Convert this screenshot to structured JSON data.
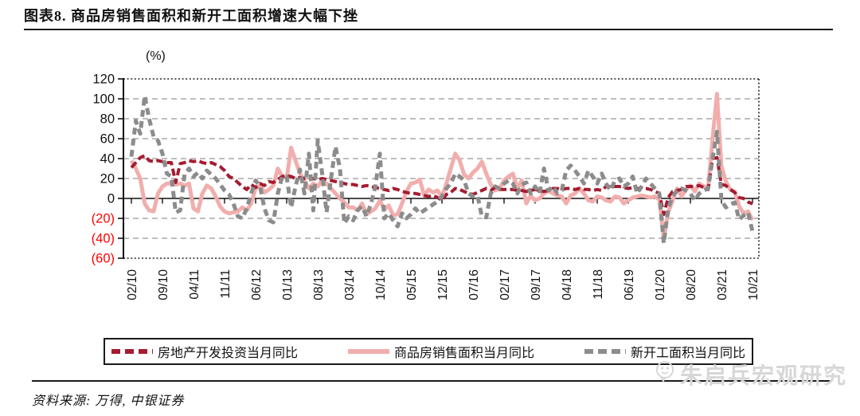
{
  "header": {
    "title": "图表8. 商品房销售面积和新开工面积增速大幅下挫"
  },
  "footer": {
    "source": "资料来源: 万得, 中银证券",
    "watermark": "朱启兵宏观研究"
  },
  "chart_data": {
    "type": "line",
    "unit_label": "(%)",
    "x_start": "02/10",
    "x_end": "10/21",
    "x_tick_every": 7,
    "x_tick_labels": [
      "02/10",
      "09/10",
      "04/11",
      "11/11",
      "06/12",
      "01/13",
      "08/13",
      "03/14",
      "10/14",
      "05/15",
      "12/15",
      "07/16",
      "02/17",
      "09/17",
      "04/18",
      "11/18",
      "06/19",
      "01/20",
      "08/20",
      "03/21",
      "10/21"
    ],
    "ylim": [
      -60,
      120
    ],
    "ytick_values": [
      120,
      100,
      80,
      60,
      40,
      20,
      0,
      -20,
      -40,
      -60
    ],
    "ytick_labels": [
      "120",
      "100",
      "80",
      "60",
      "40",
      "20",
      "0",
      "(20)",
      "(40)",
      "(60)"
    ],
    "negative_tick_color": "#FF0000",
    "grid": "dashed-horizontal",
    "legend_position": "bottom",
    "series": [
      {
        "id": "investment",
        "name": "房地产开发投资当月同比",
        "color": "#A51C30",
        "style": "dashed",
        "values": [
          31,
          36,
          41,
          43,
          38,
          37,
          38,
          37,
          36,
          36,
          16,
          35,
          36,
          38,
          37,
          38,
          36,
          35,
          36,
          34,
          32,
          28,
          22,
          20,
          16,
          12,
          9,
          14,
          11,
          15,
          13,
          17,
          16,
          19,
          22,
          23,
          22,
          20,
          21,
          20,
          20,
          20,
          19,
          20,
          19,
          18,
          17,
          16,
          15,
          14,
          14,
          13,
          12,
          13,
          12,
          11,
          10,
          9,
          8,
          10,
          9,
          7,
          6,
          5,
          5,
          4,
          3,
          2,
          3,
          1,
          -2,
          4,
          6,
          10,
          9,
          7,
          5,
          4,
          6,
          8,
          10,
          8,
          11,
          9,
          9,
          9,
          9,
          8,
          8,
          7,
          8,
          9,
          8,
          7,
          8,
          10,
          10,
          9,
          10,
          10,
          9,
          10,
          9,
          9,
          8,
          9,
          8,
          12,
          12,
          12,
          12,
          11,
          10,
          11,
          10,
          10,
          10,
          9,
          7,
          5,
          -16,
          1,
          7,
          8,
          9,
          12,
          12,
          12,
          13,
          11,
          9,
          40,
          41,
          14,
          13,
          9,
          6,
          1,
          0,
          -3.5,
          -5.4
        ]
      },
      {
        "id": "sales",
        "name": "商品房销售面积当月同比",
        "color": "#F1AEAD",
        "style": "solid",
        "values": [
          38,
          30,
          20,
          -5,
          -12,
          -13,
          5,
          12,
          15,
          15,
          14,
          15,
          13,
          15,
          -10,
          -13,
          5,
          13,
          10,
          2,
          -8,
          -13,
          -15,
          -14,
          -13,
          -9,
          -12,
          -5,
          10,
          13,
          6,
          9,
          13,
          30,
          22,
          20,
          51,
          38,
          25,
          18,
          10,
          15,
          12,
          18,
          15,
          10,
          5,
          0,
          -4,
          -9,
          -9,
          -12,
          -5,
          -16,
          -13,
          -10,
          -2,
          -11,
          -7,
          -17,
          -16,
          -5,
          7,
          15,
          16,
          19,
          3,
          9,
          6,
          8,
          2,
          15,
          30,
          45,
          38,
          24,
          20,
          26,
          30,
          37,
          25,
          14,
          8,
          10,
          18,
          22,
          25,
          10,
          18,
          -5,
          3,
          -2,
          0,
          5,
          8,
          5,
          3,
          2,
          -5,
          3,
          5,
          10,
          5,
          -2,
          -3,
          2,
          1,
          -2,
          -3,
          2,
          1,
          -5,
          -2,
          1,
          2,
          3,
          2,
          1,
          2,
          -1,
          -40,
          -14,
          -2,
          10,
          2,
          9,
          13,
          7,
          15,
          12,
          11,
          60,
          105,
          32,
          17,
          9,
          7,
          -8,
          -15,
          -13,
          -21.7
        ]
      },
      {
        "id": "new-starts",
        "name": "新开工面积当月同比",
        "color": "#8C8C8C",
        "style": "dashed",
        "values": [
          42,
          78,
          65,
          103,
          80,
          62,
          58,
          45,
          25,
          22,
          -14,
          -12,
          25,
          30,
          22,
          26,
          20,
          28,
          24,
          20,
          14,
          8,
          4,
          -5,
          -18,
          -20,
          -10,
          5,
          18,
          12,
          -10,
          -22,
          -24,
          5,
          22,
          22,
          -9,
          12,
          29,
          5,
          45,
          -12,
          58,
          25,
          -14,
          20,
          52,
          30,
          -25,
          -18,
          -22,
          -12,
          -8,
          -18,
          -5,
          12,
          45,
          -20,
          -15,
          -22,
          -28,
          -15,
          -20,
          -16,
          -10,
          -15,
          -12,
          -9,
          -6,
          -3,
          2,
          10,
          15,
          25,
          22,
          18,
          5,
          2,
          3,
          -18,
          -19,
          5,
          12,
          10,
          15,
          18,
          15,
          5,
          14,
          16,
          5,
          12,
          5,
          30,
          8,
          12,
          5,
          8,
          28,
          33,
          28,
          22,
          15,
          28,
          22,
          15,
          25,
          15,
          8,
          18,
          20,
          12,
          15,
          22,
          5,
          12,
          20,
          15,
          10,
          5,
          -45,
          -10,
          2,
          8,
          10,
          8,
          5,
          -2,
          5,
          8,
          10,
          40,
          67,
          -2,
          -9,
          -6,
          -4,
          -21,
          -17,
          -14,
          -33
        ]
      }
    ]
  }
}
